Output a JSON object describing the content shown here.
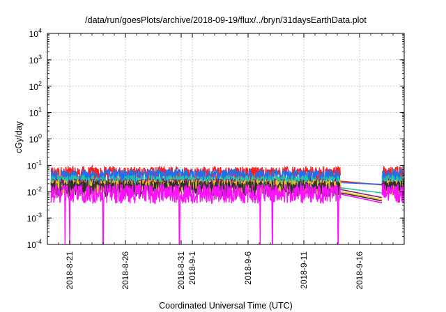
{
  "chart_data": {
    "type": "line",
    "title": "/data/run/goesPlots/archive/2018-09-19/flux/../bryn/31daysEarthData.plot",
    "xlabel": "Coordinated Universal Time (UTC)",
    "ylabel": "cGy/day",
    "yscale": "log",
    "ylim": [
      0.0001,
      10000
    ],
    "xlim": [
      "2018-08-19T00:00",
      "2018-09-20T00:00"
    ],
    "grid": true,
    "y_ticks": [
      {
        "exp": "-4",
        "value": 0.0001
      },
      {
        "exp": "-3",
        "value": 0.001
      },
      {
        "exp": "-2",
        "value": 0.01
      },
      {
        "exp": "-1",
        "value": 0.1
      },
      {
        "exp": "0",
        "value": 1
      },
      {
        "exp": "1",
        "value": 10
      },
      {
        "exp": "2",
        "value": 100
      },
      {
        "exp": "3",
        "value": 1000
      },
      {
        "exp": "4",
        "value": 10000
      }
    ],
    "y_tick_base": "10",
    "x_ticks": [
      {
        "label": "2018-8-21",
        "date": "2018-08-21"
      },
      {
        "label": "2018-8-26",
        "date": "2018-08-26"
      },
      {
        "label": "2018-8-31",
        "date": "2018-08-31"
      },
      {
        "label": "2018-9-1",
        "date": "2018-09-01"
      },
      {
        "label": "2018-9-6",
        "date": "2018-09-06"
      },
      {
        "label": "2018-9-11",
        "date": "2018-09-11"
      },
      {
        "label": "2018-9-16",
        "date": "2018-09-16"
      }
    ],
    "data_gap": [
      "2018-09-14T08:00",
      "2018-09-18T00:00"
    ],
    "dropouts": [
      "2018-08-20T14:00",
      "2018-08-21T00:00",
      "2018-08-24T00:00",
      "2018-08-30T20:00",
      "2018-09-07T02:00",
      "2018-09-08T04:00",
      "2018-09-14T02:00"
    ],
    "series": [
      {
        "color": "#ff2020",
        "typical": 0.045,
        "min": 0.02,
        "max": 0.085,
        "gap_start": 0.025,
        "gap_end": 0.018
      },
      {
        "color": "#1f6ff0",
        "typical": 0.035,
        "min": 0.015,
        "max": 0.065,
        "gap_start": 0.022,
        "gap_end": 0.019
      },
      {
        "color": "#20c8a0",
        "typical": 0.022,
        "min": 0.01,
        "max": 0.04,
        "gap_start": 0.014,
        "gap_end": 0.009
      },
      {
        "color": "#8b2060",
        "typical": 0.016,
        "min": 0.008,
        "max": 0.03,
        "gap_start": 0.012,
        "gap_end": 0.006
      },
      {
        "color": "#f0c020",
        "typical": 0.014,
        "min": 0.007,
        "max": 0.028,
        "gap_start": 0.01,
        "gap_end": 0.005
      },
      {
        "color": "#303030",
        "typical": 0.013,
        "min": 0.006,
        "max": 0.025,
        "gap_start": 0.009,
        "gap_end": 0.0045
      },
      {
        "color": "#ff10ff",
        "typical": 0.008,
        "min": 0.004,
        "max": 0.02,
        "gap_start": 0.008,
        "gap_end": 0.0038
      }
    ]
  }
}
